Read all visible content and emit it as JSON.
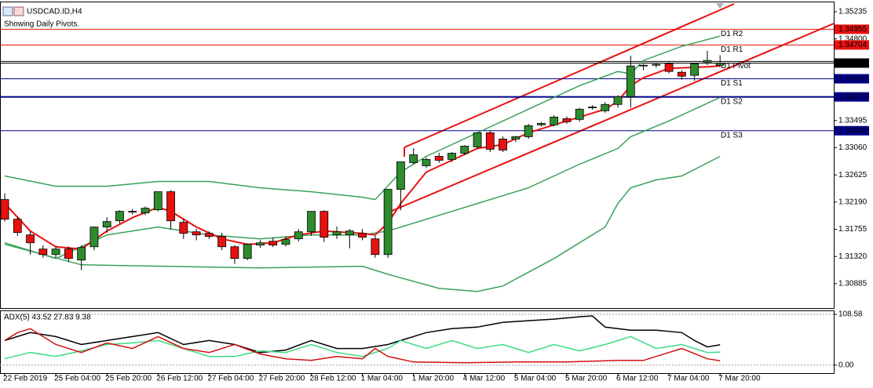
{
  "chart_data": [
    {
      "type": "candlestick",
      "title": "USDCAD.ID,H4",
      "subtitle": "Showing Daily Pivots.",
      "open": [
        1.32231,
        1.31916,
        1.31665,
        1.31439,
        1.31351,
        1.31439,
        1.31263,
        1.31476,
        1.31791,
        1.31891,
        1.32042,
        1.32017,
        1.32067,
        1.32356,
        1.31866,
        1.31715,
        1.3169,
        1.3164,
        1.31476,
        1.31288,
        1.31502,
        1.31564,
        1.31514,
        1.31602,
        1.31715,
        1.32042,
        1.31665,
        1.31665,
        1.3169,
        1.31602,
        1.31351,
        1.32394,
        1.32821,
        1.32771,
        1.32922,
        1.32872,
        1.32972,
        1.33073,
        1.33299,
        1.33199,
        1.33199,
        1.33236,
        1.33425,
        1.33425,
        1.33525,
        1.33513,
        1.33701,
        1.33651,
        1.33752,
        1.33877,
        1.34368,
        1.3438,
        1.34405,
        1.34267,
        1.34217,
        1.3443,
        1.3438
      ],
      "high": [
        1.3233,
        1.3195,
        1.3172,
        1.315,
        1.3148,
        1.3148,
        1.315,
        1.318,
        1.3195,
        1.3206,
        1.3208,
        1.3212,
        1.32356,
        1.3238,
        1.3192,
        1.3176,
        1.3172,
        1.317,
        1.315,
        1.3153,
        1.3158,
        1.3162,
        1.3164,
        1.3176,
        1.32042,
        1.3206,
        1.318,
        1.3176,
        1.3176,
        1.3165,
        1.324,
        1.3284,
        1.3305,
        1.329,
        1.3298,
        1.3299,
        1.331,
        1.3331,
        1.3333,
        1.3324,
        1.3325,
        1.3344,
        1.3347,
        1.3358,
        1.3356,
        1.337,
        1.3374,
        1.3379,
        1.339,
        1.3453,
        1.344,
        1.3442,
        1.3443,
        1.343,
        1.3442,
        1.3461,
        1.3454
      ],
      "low": [
        1.3188,
        1.3165,
        1.3135,
        1.313,
        1.313,
        1.3123,
        1.311,
        1.3142,
        1.317,
        1.3185,
        1.3199,
        1.3198,
        1.3204,
        1.3175,
        1.316,
        1.3158,
        1.316,
        1.3142,
        1.312,
        1.3126,
        1.3146,
        1.3147,
        1.3148,
        1.3156,
        1.3165,
        1.3155,
        1.316,
        1.3145,
        1.3158,
        1.313,
        1.313,
        1.3206,
        1.328,
        1.3274,
        1.3282,
        1.3283,
        1.3294,
        1.3304,
        1.3299,
        1.3299,
        1.3315,
        1.332,
        1.334,
        1.334,
        1.3344,
        1.3348,
        1.3367,
        1.3362,
        1.337,
        1.337,
        1.343,
        1.3434,
        1.3425,
        1.3415,
        1.3413,
        1.3438,
        1.3435
      ],
      "close": [
        1.31916,
        1.31703,
        1.31539,
        1.31351,
        1.31439,
        1.31288,
        1.31464,
        1.31791,
        1.31879,
        1.32042,
        1.3203,
        1.32092,
        1.32356,
        1.31891,
        1.3169,
        1.31665,
        1.3164,
        1.31476,
        1.31288,
        1.31514,
        1.31539,
        1.31502,
        1.3159,
        1.31715,
        1.32042,
        1.31627,
        1.31715,
        1.31728,
        1.31627,
        1.31351,
        1.32394,
        1.32834,
        1.32947,
        1.32872,
        1.32859,
        1.32972,
        1.33085,
        1.33299,
        1.33035,
        1.33023,
        1.33236,
        1.33412,
        1.3345,
        1.3355,
        1.33475,
        1.33676,
        1.3371,
        1.33752,
        1.33877,
        1.34368,
        1.3438,
        1.34393,
        1.3428,
        1.34204,
        1.34405,
        1.34456,
        1.34414
      ],
      "up_color": "#2e8b2e",
      "down_color": "#e8110f",
      "xlim": [
        -0.37,
        64.9
      ],
      "ylim": [
        1.30495,
        1.35398
      ],
      "xticks": [
        {
          "value": 0,
          "label": "22 Feb 2019"
        },
        {
          "value": 4,
          "label": "25 Feb 04:00"
        },
        {
          "value": 8,
          "label": "25 Feb 20:00"
        },
        {
          "value": 12,
          "label": "26 Feb 12:00"
        },
        {
          "value": 16,
          "label": "27 Feb 04:00"
        },
        {
          "value": 20,
          "label": "27 Feb 20:00"
        },
        {
          "value": 24,
          "label": "28 Feb 12:00"
        },
        {
          "value": 28,
          "label": "1 Mar 04:00"
        },
        {
          "value": 32,
          "label": "1 Mar 20:00"
        },
        {
          "value": 36,
          "label": "4 Mar 12:00"
        },
        {
          "value": 40,
          "label": "5 Mar 04:00"
        },
        {
          "value": 44,
          "label": "5 Mar 20:00"
        },
        {
          "value": 48,
          "label": "6 Mar 12:00"
        },
        {
          "value": 52,
          "label": "7 Mar 04:00"
        },
        {
          "value": 56,
          "label": "7 Mar 20:00"
        }
      ],
      "yticks": [
        1.35235,
        {
          "value": 1.348,
          "label": "1.34800"
        },
        1.33495,
        {
          "value": 1.3306,
          "label": "1.33060"
        },
        1.32625,
        {
          "value": 1.3219,
          "label": "1.32190"
        },
        1.31755,
        {
          "value": 1.3132,
          "label": "1.31320"
        },
        1.30885
      ],
      "lines": [
        {
          "color": "#3aa15a",
          "width": 1.5,
          "x": [
            0,
            4,
            8,
            12,
            16,
            20,
            24,
            28,
            29,
            31,
            33,
            37,
            41,
            45,
            48,
            49,
            50,
            53,
            56
          ],
          "values": [
            1.32608,
            1.32444,
            1.32444,
            1.3252,
            1.3252,
            1.32419,
            1.32356,
            1.32268,
            1.32231,
            1.32671,
            1.32922,
            1.33299,
            1.33676,
            1.34053,
            1.3428,
            1.34242,
            1.34456,
            1.34682,
            1.34845
          ]
        },
        {
          "color": "#3aa15a",
          "width": 1.5,
          "x": [
            0,
            4,
            8,
            12,
            16,
            20,
            24,
            28,
            30,
            33,
            37,
            41,
            45,
            48,
            49,
            52,
            56
          ],
          "values": [
            1.31539,
            1.31288,
            1.31665,
            1.31791,
            1.31665,
            1.31602,
            1.31665,
            1.31665,
            1.31728,
            1.31916,
            1.32168,
            1.32419,
            1.32796,
            1.33048,
            1.33236,
            1.33488,
            1.33865
          ]
        },
        {
          "color": "#3aa15a",
          "width": 1.5,
          "x": [
            0,
            6,
            20,
            28,
            30,
            34,
            37,
            39,
            43,
            47,
            48,
            49,
            51,
            53,
            56
          ],
          "values": [
            1.31514,
            1.31187,
            1.31137,
            1.31162,
            1.31036,
            1.3081,
            1.3076,
            1.30848,
            1.31288,
            1.31791,
            1.32168,
            1.32419,
            1.32545,
            1.32608,
            1.32922
          ]
        },
        {
          "color": "#e8110f",
          "width": 2,
          "x": [
            0,
            2,
            4,
            6,
            8,
            10,
            12,
            13,
            15,
            17,
            19,
            21,
            23,
            25,
            28,
            29,
            30,
            31,
            33,
            35,
            37,
            39,
            41,
            43,
            45,
            47,
            48,
            49,
            50,
            52,
            55,
            56
          ],
          "values": [
            1.32168,
            1.31728,
            1.31476,
            1.31439,
            1.31728,
            1.31941,
            1.32105,
            1.32042,
            1.31791,
            1.31602,
            1.31514,
            1.31539,
            1.31665,
            1.31728,
            1.3169,
            1.31665,
            1.31854,
            1.32168,
            1.32671,
            1.32859,
            1.33048,
            1.33111,
            1.33299,
            1.33425,
            1.3355,
            1.33676,
            1.33802,
            1.34053,
            1.34179,
            1.3433,
            1.34355,
            1.34368
          ]
        }
      ],
      "levels": [
        {
          "label": "D1 R2",
          "value": 1.34955,
          "color": "#e8110f",
          "boxed": true
        },
        {
          "label": "D1 R1",
          "value": 1.34704,
          "color": "#e8110f",
          "boxed": true
        },
        {
          "label": "D1 Pivot",
          "value": 1.3444,
          "color": "#000000",
          "boxed": false
        },
        {
          "label": "D1 S1",
          "value": 1.34163,
          "color": "#00008b",
          "boxed": true
        },
        {
          "label": "D1 S2",
          "value": 1.33873,
          "color": "#00008b",
          "boxed": true
        },
        {
          "label": "D1 S3",
          "value": 1.33332,
          "color": "#00008b",
          "boxed": true
        }
      ],
      "last_price": 1.34414,
      "last_price_color": "#000000"
    },
    {
      "type": "line",
      "title": "ADX(5) 43.52 27.83 9.38",
      "xlim": [
        -0.37,
        64.9
      ],
      "ylim": [
        -17,
        117
      ],
      "yticks": [
        108.58,
        {
          "value": 0,
          "label": "0.00"
        }
      ],
      "series": [
        {
          "color": "#000000",
          "x": [
            0,
            2,
            4,
            6,
            8,
            10,
            12,
            14,
            16,
            18,
            20,
            22,
            24,
            26,
            28,
            30,
            31,
            33,
            35,
            37,
            39,
            41,
            43,
            45,
            46,
            47,
            49,
            51,
            53,
            54,
            55,
            56
          ],
          "values": [
            52.6,
            69.6,
            61.1,
            44.1,
            52.6,
            61.1,
            69.6,
            44.1,
            52.6,
            44.1,
            27.1,
            32.2,
            52.6,
            35.6,
            35.6,
            44.1,
            52.6,
            69.6,
            78,
            81.4,
            91.6,
            95,
            98.4,
            103.5,
            105.2,
            81.4,
            74.7,
            74.7,
            69.6,
            52.6,
            39,
            43.52
          ]
        },
        {
          "color": "#3ddc84",
          "x": [
            0,
            2,
            4,
            6,
            8,
            10,
            12,
            14,
            16,
            18,
            20,
            22,
            24,
            26,
            28,
            30,
            31,
            33,
            35,
            37,
            39,
            41,
            43,
            45,
            47,
            49,
            51,
            53,
            55,
            56
          ],
          "values": [
            13.6,
            27.1,
            18.7,
            30.5,
            44.1,
            47.5,
            52.6,
            35.6,
            18.7,
            18.7,
            30.5,
            27.1,
            44.1,
            27.1,
            18.7,
            35.6,
            52.6,
            35.6,
            52.6,
            35.6,
            44.1,
            27.1,
            44.1,
            30.5,
            44.1,
            61.1,
            35.6,
            44.1,
            27.1,
            27.83
          ]
        },
        {
          "color": "#d01010",
          "x": [
            0,
            1,
            2,
            3,
            4,
            6,
            8,
            10,
            12,
            14,
            16,
            18,
            20,
            22,
            24,
            26,
            28,
            29,
            30,
            32,
            36,
            40,
            44,
            48,
            50,
            52,
            53,
            55,
            56
          ],
          "values": [
            52.6,
            69.6,
            78,
            61.1,
            44.1,
            27.1,
            47.5,
            35.6,
            61.1,
            35.6,
            27.1,
            44.1,
            23.8,
            13.6,
            10.2,
            18.7,
            13.6,
            35.6,
            18.7,
            6.8,
            5.1,
            6.8,
            6.8,
            10.2,
            10.2,
            27.1,
            35.6,
            13.6,
            9.38
          ]
        }
      ]
    }
  ]
}
